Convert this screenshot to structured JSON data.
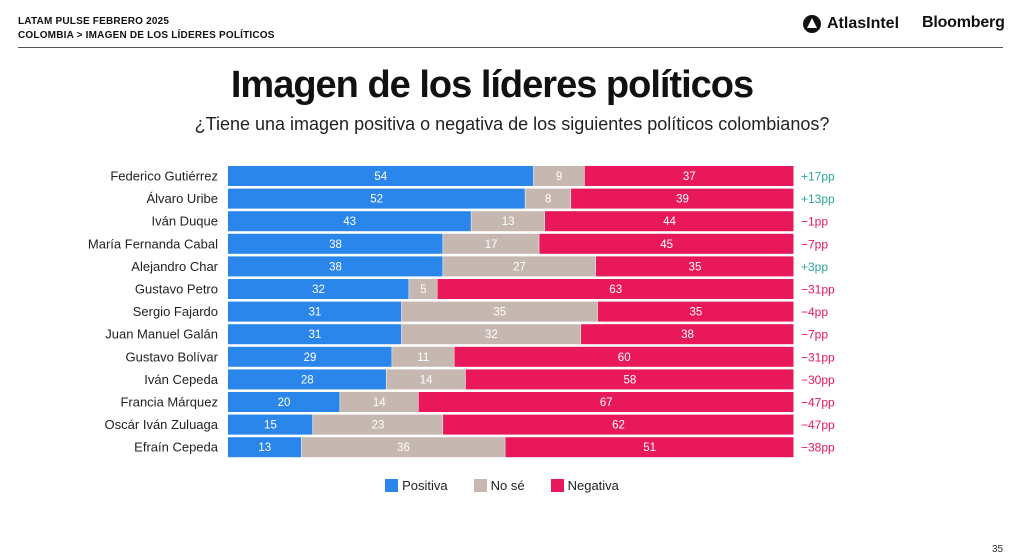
{
  "header": {
    "line1": "LATAM PULSE FEBRERO 2025",
    "line2": "COLOMBIA > IMAGEN DE LOS LÍDERES POLÍTICOS",
    "brand1": "AtlasIntel",
    "brand2": "Bloomberg"
  },
  "page_number": "35",
  "colors": {
    "positiva": "#2b86ec",
    "no_se": "#c6b8b1",
    "negativa": "#e8185a",
    "diff_positive": "#2aa79b",
    "diff_negative": "#e8185a"
  },
  "chart_data": {
    "type": "bar",
    "orientation": "horizontal",
    "stacked": true,
    "title": "Imagen de los líderes políticos",
    "subtitle": "¿Tiene una imagen positiva o negativa de los siguientes políticos colombianos?",
    "categories": [
      "Federico Gutiérrez",
      "Álvaro Uribe",
      "Iván Duque",
      "María Fernanda Cabal",
      "Alejandro Char",
      "Gustavo Petro",
      "Sergio Fajardo",
      "Juan Manuel Galán",
      "Gustavo Bolívar",
      "Iván Cepeda",
      "Francia Márquez",
      "Oscár Iván Zuluaga",
      "Efraín Cepeda"
    ],
    "series": [
      {
        "name": "Positiva",
        "values": [
          54,
          52,
          43,
          38,
          38,
          32,
          31,
          31,
          29,
          28,
          20,
          15,
          13
        ]
      },
      {
        "name": "No sé",
        "values": [
          9,
          8,
          13,
          17,
          27,
          5,
          35,
          32,
          11,
          14,
          14,
          23,
          36
        ]
      },
      {
        "name": "Negativa",
        "values": [
          37,
          39,
          44,
          45,
          35,
          63,
          35,
          38,
          60,
          58,
          67,
          62,
          51
        ]
      }
    ],
    "net": [
      "+17pp",
      "+13pp",
      "−1pp",
      "−7pp",
      "+3pp",
      "−31pp",
      "−4pp",
      "−7pp",
      "−31pp",
      "−30pp",
      "−47pp",
      "−47pp",
      "−38pp"
    ],
    "xlim": [
      0,
      100
    ],
    "legend": "bottom-center",
    "grid": false
  }
}
